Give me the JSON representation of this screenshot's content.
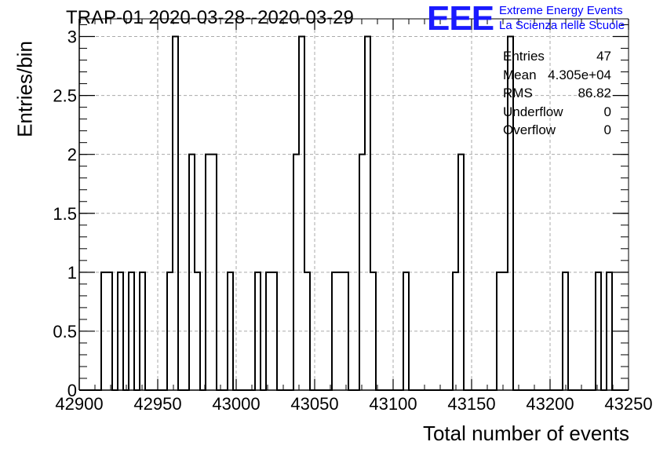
{
  "chart_data": {
    "type": "histogram",
    "title": "TRAP-01 2020-03-28--2020-03-29",
    "xlabel": "Total number of events",
    "ylabel": "Entries/bin",
    "xlim": [
      42900,
      43250
    ],
    "ylim": [
      0,
      3.15
    ],
    "grid": true,
    "bin_width": 3.5,
    "xticks": [
      "42900",
      "42950",
      "43000",
      "43050",
      "43100",
      "43150",
      "43200",
      "43250"
    ],
    "yticks": [
      "0",
      "0.5",
      "1",
      "1.5",
      "2",
      "2.5",
      "3"
    ],
    "bins": [
      {
        "x": 42914,
        "count": 1
      },
      {
        "x": 42917.5,
        "count": 1
      },
      {
        "x": 42924.5,
        "count": 1
      },
      {
        "x": 42931.5,
        "count": 1
      },
      {
        "x": 42938.5,
        "count": 1
      },
      {
        "x": 42956,
        "count": 1
      },
      {
        "x": 42959.5,
        "count": 3
      },
      {
        "x": 42970,
        "count": 2
      },
      {
        "x": 42973.5,
        "count": 1
      },
      {
        "x": 42980.5,
        "count": 2
      },
      {
        "x": 42984,
        "count": 2
      },
      {
        "x": 42994.5,
        "count": 1
      },
      {
        "x": 43012,
        "count": 1
      },
      {
        "x": 43019,
        "count": 1
      },
      {
        "x": 43022.5,
        "count": 1
      },
      {
        "x": 43036.5,
        "count": 2
      },
      {
        "x": 43040,
        "count": 3
      },
      {
        "x": 43043.5,
        "count": 1
      },
      {
        "x": 43061,
        "count": 1
      },
      {
        "x": 43064.5,
        "count": 1
      },
      {
        "x": 43068,
        "count": 1
      },
      {
        "x": 43078.5,
        "count": 2
      },
      {
        "x": 43082,
        "count": 3
      },
      {
        "x": 43085.5,
        "count": 1
      },
      {
        "x": 43106.5,
        "count": 1
      },
      {
        "x": 43138,
        "count": 1
      },
      {
        "x": 43141.5,
        "count": 2
      },
      {
        "x": 43166,
        "count": 1
      },
      {
        "x": 43169.5,
        "count": 1
      },
      {
        "x": 43173,
        "count": 3
      },
      {
        "x": 43208,
        "count": 1
      },
      {
        "x": 43229,
        "count": 1
      },
      {
        "x": 43236,
        "count": 1
      }
    ]
  },
  "stats": {
    "rows": [
      {
        "key": "Entries",
        "value": "47"
      },
      {
        "key": "Mean",
        "value": "4.305e+04"
      },
      {
        "key": "RMS",
        "value": "86.82"
      },
      {
        "key": "Underflow",
        "value": "0"
      },
      {
        "key": "Overflow",
        "value": "0"
      }
    ]
  },
  "logo": {
    "mark": "EEE",
    "line1": "Extreme Energy Events",
    "line2": "La Scienza nelle Scuole",
    "color": "#0000ff"
  }
}
